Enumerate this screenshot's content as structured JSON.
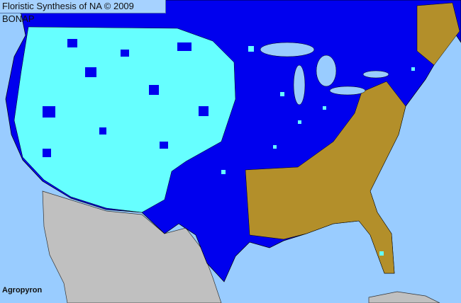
{
  "title": "Floristic Synthesis of NA © 2009 BONAP",
  "taxon_label": "Agropyron",
  "colors": {
    "ocean": "#99ccff",
    "present_in_state": "#0000ee",
    "present_in_county": "#66ffff",
    "absent": "#b38f2a",
    "outside_region": "#c0c0c0"
  }
}
